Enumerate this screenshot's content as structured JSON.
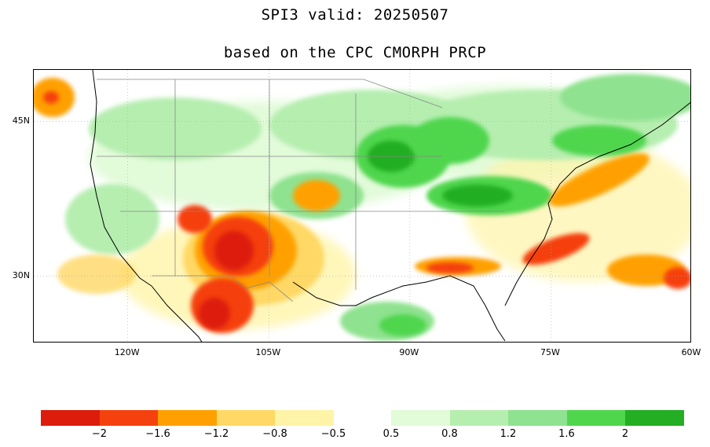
{
  "header": {
    "title_line1": "SPI3  valid: 20250507",
    "title_line2": "based on the CPC CMORPH PRCP"
  },
  "map": {
    "region": "Contiguous United States",
    "lon_range": [
      -130,
      -60
    ],
    "lat_range": [
      23.5,
      50
    ],
    "lat_labels": [
      {
        "lat": 45,
        "text": "45N"
      },
      {
        "lat": 30,
        "text": "30N"
      }
    ],
    "lon_labels": [
      {
        "lon": -120,
        "text": "120W"
      },
      {
        "lon": -105,
        "text": "105W"
      },
      {
        "lon": -90,
        "text": "90W"
      },
      {
        "lon": -75,
        "text": "75W"
      },
      {
        "lon": -60,
        "text": "60W"
      }
    ],
    "gridlines": "dotted",
    "fields": [
      {
        "name": "southwest-drought",
        "lon": -107,
        "lat": 33,
        "class": "dry-2"
      },
      {
        "name": "west-texas-drought",
        "lon": -104,
        "lat": 29,
        "class": "dry-2"
      },
      {
        "name": "new-mexico-drought",
        "lon": -109,
        "lat": 36,
        "class": "dry-1.6"
      },
      {
        "name": "southeast-dry-band",
        "lon": -84,
        "lat": 32,
        "class": "dry-1.6"
      },
      {
        "name": "atlantic-dry-band",
        "lon": -68,
        "lat": 36,
        "class": "dry-1.6"
      },
      {
        "name": "atlantic-dry-east",
        "lon": -62,
        "lat": 31,
        "class": "dry-1.6"
      },
      {
        "name": "pacific-nw-dry",
        "lon": -129,
        "lat": 47,
        "class": "dry-1.2"
      },
      {
        "name": "upper-midwest-wet",
        "lon": -95,
        "lat": 43,
        "class": "wet-2"
      },
      {
        "name": "ohio-valley-wet",
        "lon": -85,
        "lat": 38.5,
        "class": "wet-2"
      },
      {
        "name": "great-lakes-wet",
        "lon": -84,
        "lat": 44,
        "class": "wet-1.6"
      },
      {
        "name": "northeast-wet",
        "lon": -72,
        "lat": 45.5,
        "class": "wet-1.6"
      },
      {
        "name": "northern-plains-wet",
        "lon": -105,
        "lat": 45,
        "class": "wet-1.2"
      },
      {
        "name": "gulf-wet",
        "lon": -95,
        "lat": 25.5,
        "class": "wet-1.2"
      }
    ]
  },
  "colorbar": {
    "dry_colors": [
      "#dd1c0b",
      "#f5410d",
      "#ffa000",
      "#ffd865",
      "#fff4a8"
    ],
    "wet_colors": [
      "#e2fbd9",
      "#b6eeb0",
      "#8fe28f",
      "#4fd64d",
      "#23ae23"
    ],
    "labels": [
      {
        "text": "−2"
      },
      {
        "text": "−1.6"
      },
      {
        "text": "−1.2"
      },
      {
        "text": "−0.8"
      },
      {
        "text": "−0.5"
      },
      {
        "text": "0.5"
      },
      {
        "text": "0.8"
      },
      {
        "text": "1.2"
      },
      {
        "text": "1.6"
      },
      {
        "text": "2"
      }
    ]
  }
}
